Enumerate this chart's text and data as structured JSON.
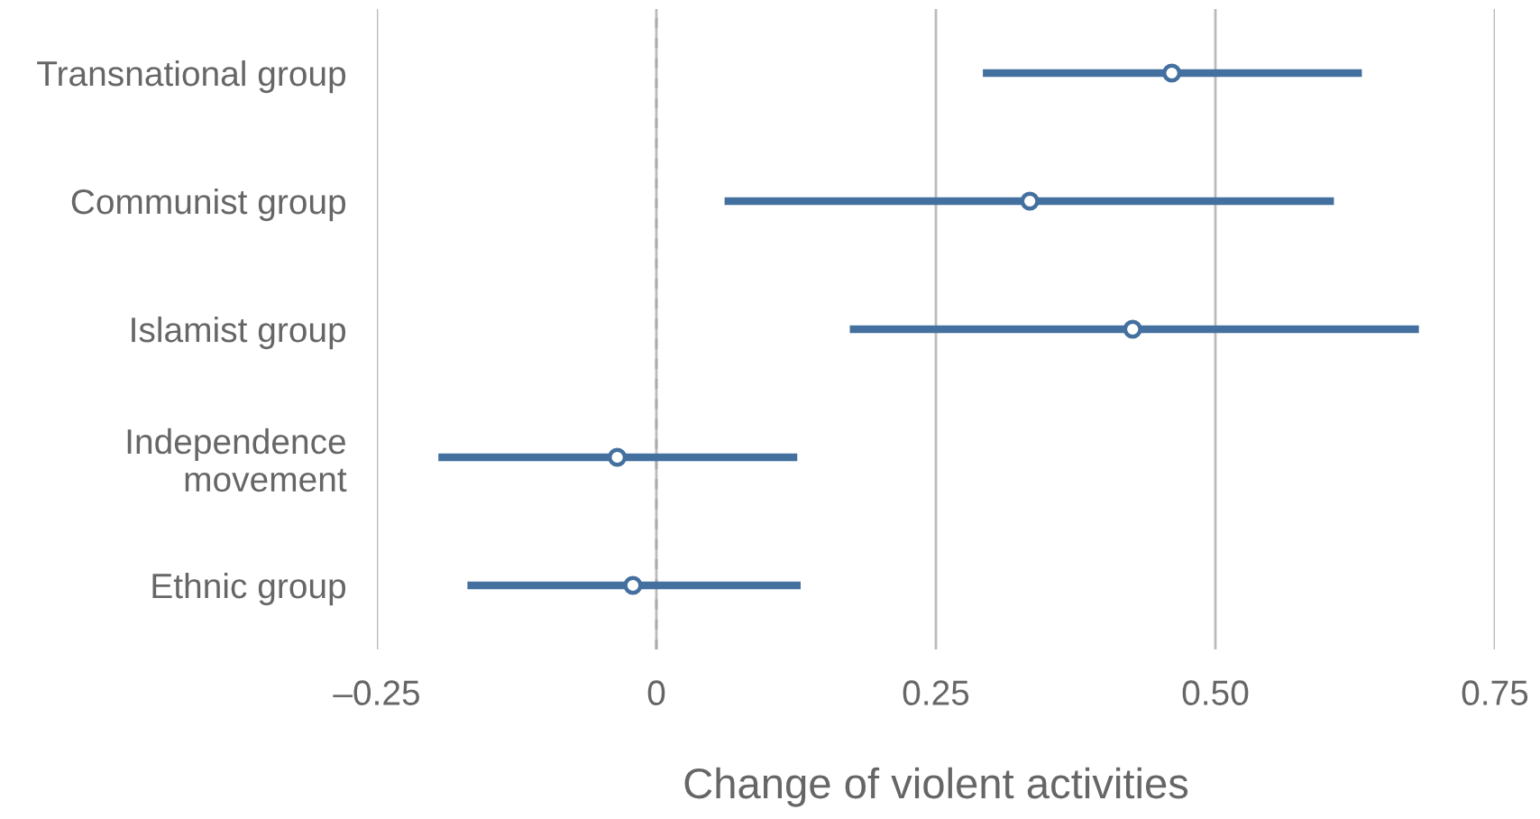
{
  "chart_data": {
    "type": "scatter",
    "orientation": "horizontal",
    "xlabel": "Change of violent activities",
    "categories": [
      "Transnational group",
      "Communist group",
      "Islamist group",
      "Independence\nmovement",
      "Ethnic group"
    ],
    "values": [
      0.461,
      0.334,
      0.426,
      -0.035,
      -0.021
    ],
    "errors": [
      [
        0.292,
        0.631
      ],
      [
        0.061,
        0.606
      ],
      [
        0.173,
        0.682
      ],
      [
        -0.195,
        0.126
      ],
      [
        -0.169,
        0.129
      ]
    ],
    "color": "#44709f",
    "marker": "circle",
    "xlim": [
      -0.25,
      0.75
    ],
    "xticks": [
      {
        "value": -0.25,
        "label": "–0.25"
      },
      0,
      0.25,
      {
        "value": 0.5,
        "label": "0.50"
      },
      0.75
    ],
    "grid": "x",
    "ref_lines": [
      {
        "axis": "x",
        "value": 0,
        "color": "#aaaaaa",
        "line_style": "dashed"
      }
    ]
  }
}
